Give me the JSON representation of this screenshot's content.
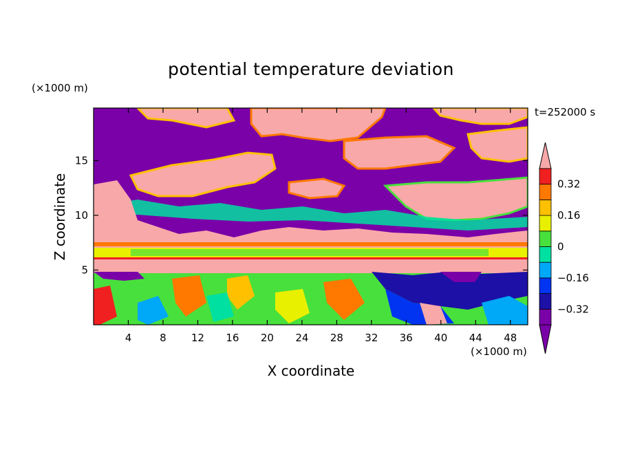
{
  "chart_data": {
    "type": "heatmap",
    "title": "potential temperature deviation",
    "xlabel": "X coordinate",
    "ylabel": "Z coordinate",
    "x_unit": "(×1000 m)",
    "y_unit": "(×1000 m)",
    "time_label": "t=252000 s",
    "xlim": [
      0,
      50
    ],
    "ylim": [
      0,
      19.8
    ],
    "x_ticks": [
      4,
      8,
      12,
      16,
      20,
      24,
      28,
      32,
      36,
      40,
      44,
      48
    ],
    "y_ticks": [
      5,
      10,
      15
    ],
    "colorbar": {
      "levels": [
        -0.4,
        -0.32,
        -0.24,
        -0.16,
        -0.08,
        0,
        0.08,
        0.16,
        0.24,
        0.32,
        0.4
      ],
      "tick_labels": [
        "0.32",
        "0.16",
        "0",
        "−0.16",
        "−0.32"
      ],
      "tick_values": [
        0.32,
        0.16,
        0,
        -0.16,
        -0.32
      ],
      "colors": [
        "#7a00a8",
        "#1c10a6",
        "#0034f0",
        "#00a8f8",
        "#00e0a0",
        "#48e03c",
        "#e8f000",
        "#ffc000",
        "#ff7800",
        "#f02020",
        "#f8a8a8"
      ],
      "extend": "both"
    }
  }
}
